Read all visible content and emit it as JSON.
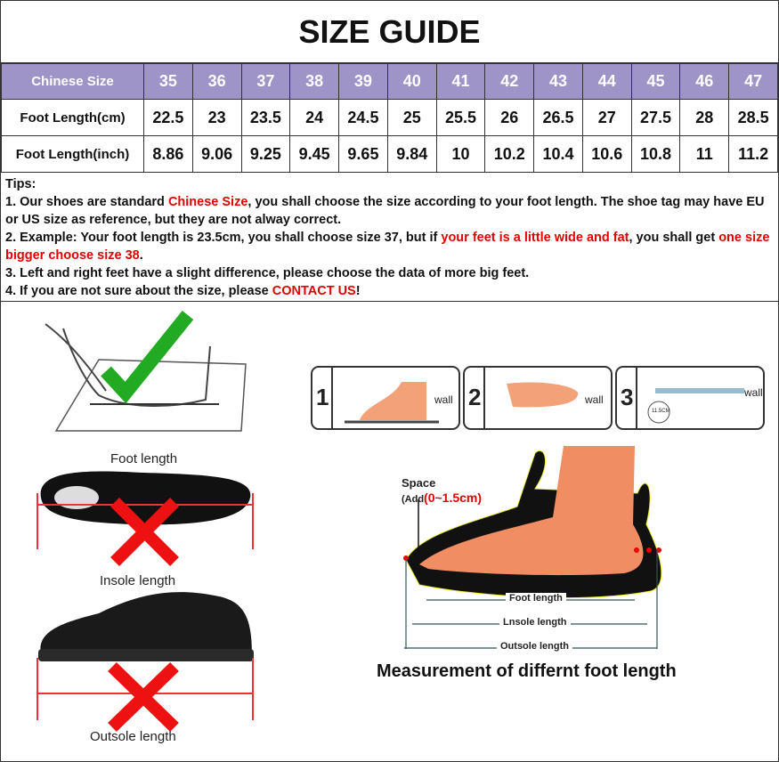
{
  "title": "SIZE GUIDE",
  "table": {
    "header": {
      "label": "Chinese Size",
      "values": [
        "35",
        "36",
        "37",
        "38",
        "39",
        "40",
        "41",
        "42",
        "43",
        "44",
        "45",
        "46",
        "47"
      ]
    },
    "rows": [
      {
        "label": "Foot Length(cm)",
        "values": [
          "22.5",
          "23",
          "23.5",
          "24",
          "24.5",
          "25",
          "25.5",
          "26",
          "26.5",
          "27",
          "27.5",
          "28",
          "28.5"
        ]
      },
      {
        "label": "Foot Length(inch)",
        "values": [
          "8.86",
          "9.06",
          "9.25",
          "9.45",
          "9.65",
          "9.84",
          "10",
          "10.2",
          "10.4",
          "10.6",
          "10.8",
          "11",
          "11.2"
        ]
      }
    ]
  },
  "tips": {
    "heading": "Tips:",
    "t1a": "1. Our shoes are standard ",
    "t1b": "Chinese Size",
    "t1c": ", you shall choose the size according to your foot length. The shoe tag may have EU or US size as reference, but they are not alway correct.",
    "t2a": "2. Example: Your foot length is 23.5cm, you shall choose size 37, but if ",
    "t2b": "your feet is a little wide and fat",
    "t2c": ", you shall get ",
    "t2d": "one size bigger choose size 38",
    "t2e": ".",
    "t3": "3. Left and right feet have a slight difference, please choose the data of more big feet.",
    "t4a": "4. If you are not sure about the size, please ",
    "t4b": "CONTACT US",
    "t4c": "!"
  },
  "illustrations": {
    "foot_length": "Foot length",
    "insole_length": "Insole length",
    "outsole_length": "Outsole length",
    "steps": [
      "1",
      "2",
      "3"
    ],
    "wall": "wall",
    "step3_badge": "11.5CM",
    "space": "Space",
    "add": "(Add",
    "add_range": "(0~1.5cm)",
    "diagram_foot": "Foot length",
    "diagram_insole": "Lnsole length",
    "diagram_outsole": "Outsole length",
    "caption": "Measurement of differnt foot length"
  },
  "colors": {
    "header_bg": "#9f94c8",
    "highlight": "#e00000",
    "check": "#22aa22",
    "cross": "#ee1111",
    "skin": "#f2a178"
  }
}
